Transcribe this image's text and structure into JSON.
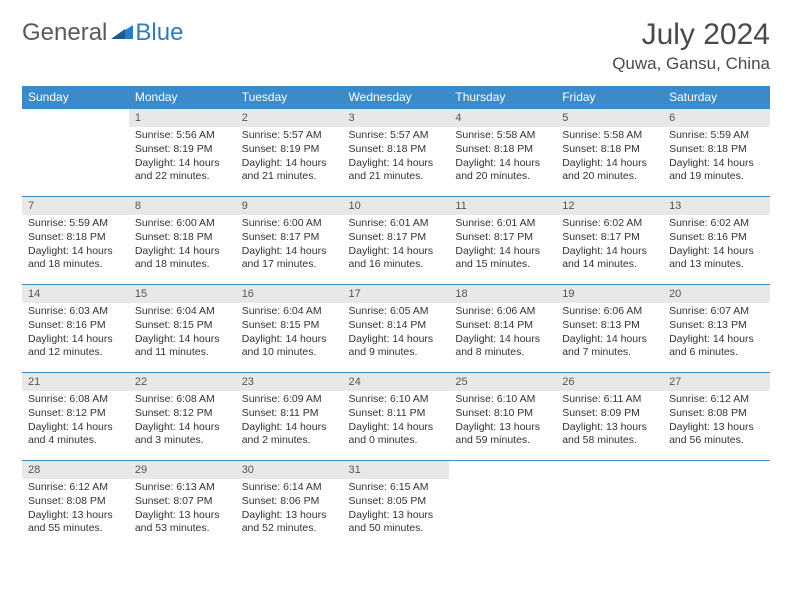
{
  "logo": {
    "text1": "General",
    "text2": "Blue"
  },
  "title": "July 2024",
  "location": "Quwa, Gansu, China",
  "colors": {
    "header_bg": "#3b8bc8",
    "header_text": "#ffffff",
    "daynum_bg": "#e8e8e8",
    "border": "#3b8bc8",
    "logo_blue": "#2e7bbf",
    "text": "#333333"
  },
  "day_headers": [
    "Sunday",
    "Monday",
    "Tuesday",
    "Wednesday",
    "Thursday",
    "Friday",
    "Saturday"
  ],
  "weeks": [
    [
      {
        "n": "",
        "sr": "",
        "ss": "",
        "dl": ""
      },
      {
        "n": "1",
        "sr": "Sunrise: 5:56 AM",
        "ss": "Sunset: 8:19 PM",
        "dl": "Daylight: 14 hours and 22 minutes."
      },
      {
        "n": "2",
        "sr": "Sunrise: 5:57 AM",
        "ss": "Sunset: 8:19 PM",
        "dl": "Daylight: 14 hours and 21 minutes."
      },
      {
        "n": "3",
        "sr": "Sunrise: 5:57 AM",
        "ss": "Sunset: 8:18 PM",
        "dl": "Daylight: 14 hours and 21 minutes."
      },
      {
        "n": "4",
        "sr": "Sunrise: 5:58 AM",
        "ss": "Sunset: 8:18 PM",
        "dl": "Daylight: 14 hours and 20 minutes."
      },
      {
        "n": "5",
        "sr": "Sunrise: 5:58 AM",
        "ss": "Sunset: 8:18 PM",
        "dl": "Daylight: 14 hours and 20 minutes."
      },
      {
        "n": "6",
        "sr": "Sunrise: 5:59 AM",
        "ss": "Sunset: 8:18 PM",
        "dl": "Daylight: 14 hours and 19 minutes."
      }
    ],
    [
      {
        "n": "7",
        "sr": "Sunrise: 5:59 AM",
        "ss": "Sunset: 8:18 PM",
        "dl": "Daylight: 14 hours and 18 minutes."
      },
      {
        "n": "8",
        "sr": "Sunrise: 6:00 AM",
        "ss": "Sunset: 8:18 PM",
        "dl": "Daylight: 14 hours and 18 minutes."
      },
      {
        "n": "9",
        "sr": "Sunrise: 6:00 AM",
        "ss": "Sunset: 8:17 PM",
        "dl": "Daylight: 14 hours and 17 minutes."
      },
      {
        "n": "10",
        "sr": "Sunrise: 6:01 AM",
        "ss": "Sunset: 8:17 PM",
        "dl": "Daylight: 14 hours and 16 minutes."
      },
      {
        "n": "11",
        "sr": "Sunrise: 6:01 AM",
        "ss": "Sunset: 8:17 PM",
        "dl": "Daylight: 14 hours and 15 minutes."
      },
      {
        "n": "12",
        "sr": "Sunrise: 6:02 AM",
        "ss": "Sunset: 8:17 PM",
        "dl": "Daylight: 14 hours and 14 minutes."
      },
      {
        "n": "13",
        "sr": "Sunrise: 6:02 AM",
        "ss": "Sunset: 8:16 PM",
        "dl": "Daylight: 14 hours and 13 minutes."
      }
    ],
    [
      {
        "n": "14",
        "sr": "Sunrise: 6:03 AM",
        "ss": "Sunset: 8:16 PM",
        "dl": "Daylight: 14 hours and 12 minutes."
      },
      {
        "n": "15",
        "sr": "Sunrise: 6:04 AM",
        "ss": "Sunset: 8:15 PM",
        "dl": "Daylight: 14 hours and 11 minutes."
      },
      {
        "n": "16",
        "sr": "Sunrise: 6:04 AM",
        "ss": "Sunset: 8:15 PM",
        "dl": "Daylight: 14 hours and 10 minutes."
      },
      {
        "n": "17",
        "sr": "Sunrise: 6:05 AM",
        "ss": "Sunset: 8:14 PM",
        "dl": "Daylight: 14 hours and 9 minutes."
      },
      {
        "n": "18",
        "sr": "Sunrise: 6:06 AM",
        "ss": "Sunset: 8:14 PM",
        "dl": "Daylight: 14 hours and 8 minutes."
      },
      {
        "n": "19",
        "sr": "Sunrise: 6:06 AM",
        "ss": "Sunset: 8:13 PM",
        "dl": "Daylight: 14 hours and 7 minutes."
      },
      {
        "n": "20",
        "sr": "Sunrise: 6:07 AM",
        "ss": "Sunset: 8:13 PM",
        "dl": "Daylight: 14 hours and 6 minutes."
      }
    ],
    [
      {
        "n": "21",
        "sr": "Sunrise: 6:08 AM",
        "ss": "Sunset: 8:12 PM",
        "dl": "Daylight: 14 hours and 4 minutes."
      },
      {
        "n": "22",
        "sr": "Sunrise: 6:08 AM",
        "ss": "Sunset: 8:12 PM",
        "dl": "Daylight: 14 hours and 3 minutes."
      },
      {
        "n": "23",
        "sr": "Sunrise: 6:09 AM",
        "ss": "Sunset: 8:11 PM",
        "dl": "Daylight: 14 hours and 2 minutes."
      },
      {
        "n": "24",
        "sr": "Sunrise: 6:10 AM",
        "ss": "Sunset: 8:11 PM",
        "dl": "Daylight: 14 hours and 0 minutes."
      },
      {
        "n": "25",
        "sr": "Sunrise: 6:10 AM",
        "ss": "Sunset: 8:10 PM",
        "dl": "Daylight: 13 hours and 59 minutes."
      },
      {
        "n": "26",
        "sr": "Sunrise: 6:11 AM",
        "ss": "Sunset: 8:09 PM",
        "dl": "Daylight: 13 hours and 58 minutes."
      },
      {
        "n": "27",
        "sr": "Sunrise: 6:12 AM",
        "ss": "Sunset: 8:08 PM",
        "dl": "Daylight: 13 hours and 56 minutes."
      }
    ],
    [
      {
        "n": "28",
        "sr": "Sunrise: 6:12 AM",
        "ss": "Sunset: 8:08 PM",
        "dl": "Daylight: 13 hours and 55 minutes."
      },
      {
        "n": "29",
        "sr": "Sunrise: 6:13 AM",
        "ss": "Sunset: 8:07 PM",
        "dl": "Daylight: 13 hours and 53 minutes."
      },
      {
        "n": "30",
        "sr": "Sunrise: 6:14 AM",
        "ss": "Sunset: 8:06 PM",
        "dl": "Daylight: 13 hours and 52 minutes."
      },
      {
        "n": "31",
        "sr": "Sunrise: 6:15 AM",
        "ss": "Sunset: 8:05 PM",
        "dl": "Daylight: 13 hours and 50 minutes."
      },
      {
        "n": "",
        "sr": "",
        "ss": "",
        "dl": ""
      },
      {
        "n": "",
        "sr": "",
        "ss": "",
        "dl": ""
      },
      {
        "n": "",
        "sr": "",
        "ss": "",
        "dl": ""
      }
    ]
  ]
}
